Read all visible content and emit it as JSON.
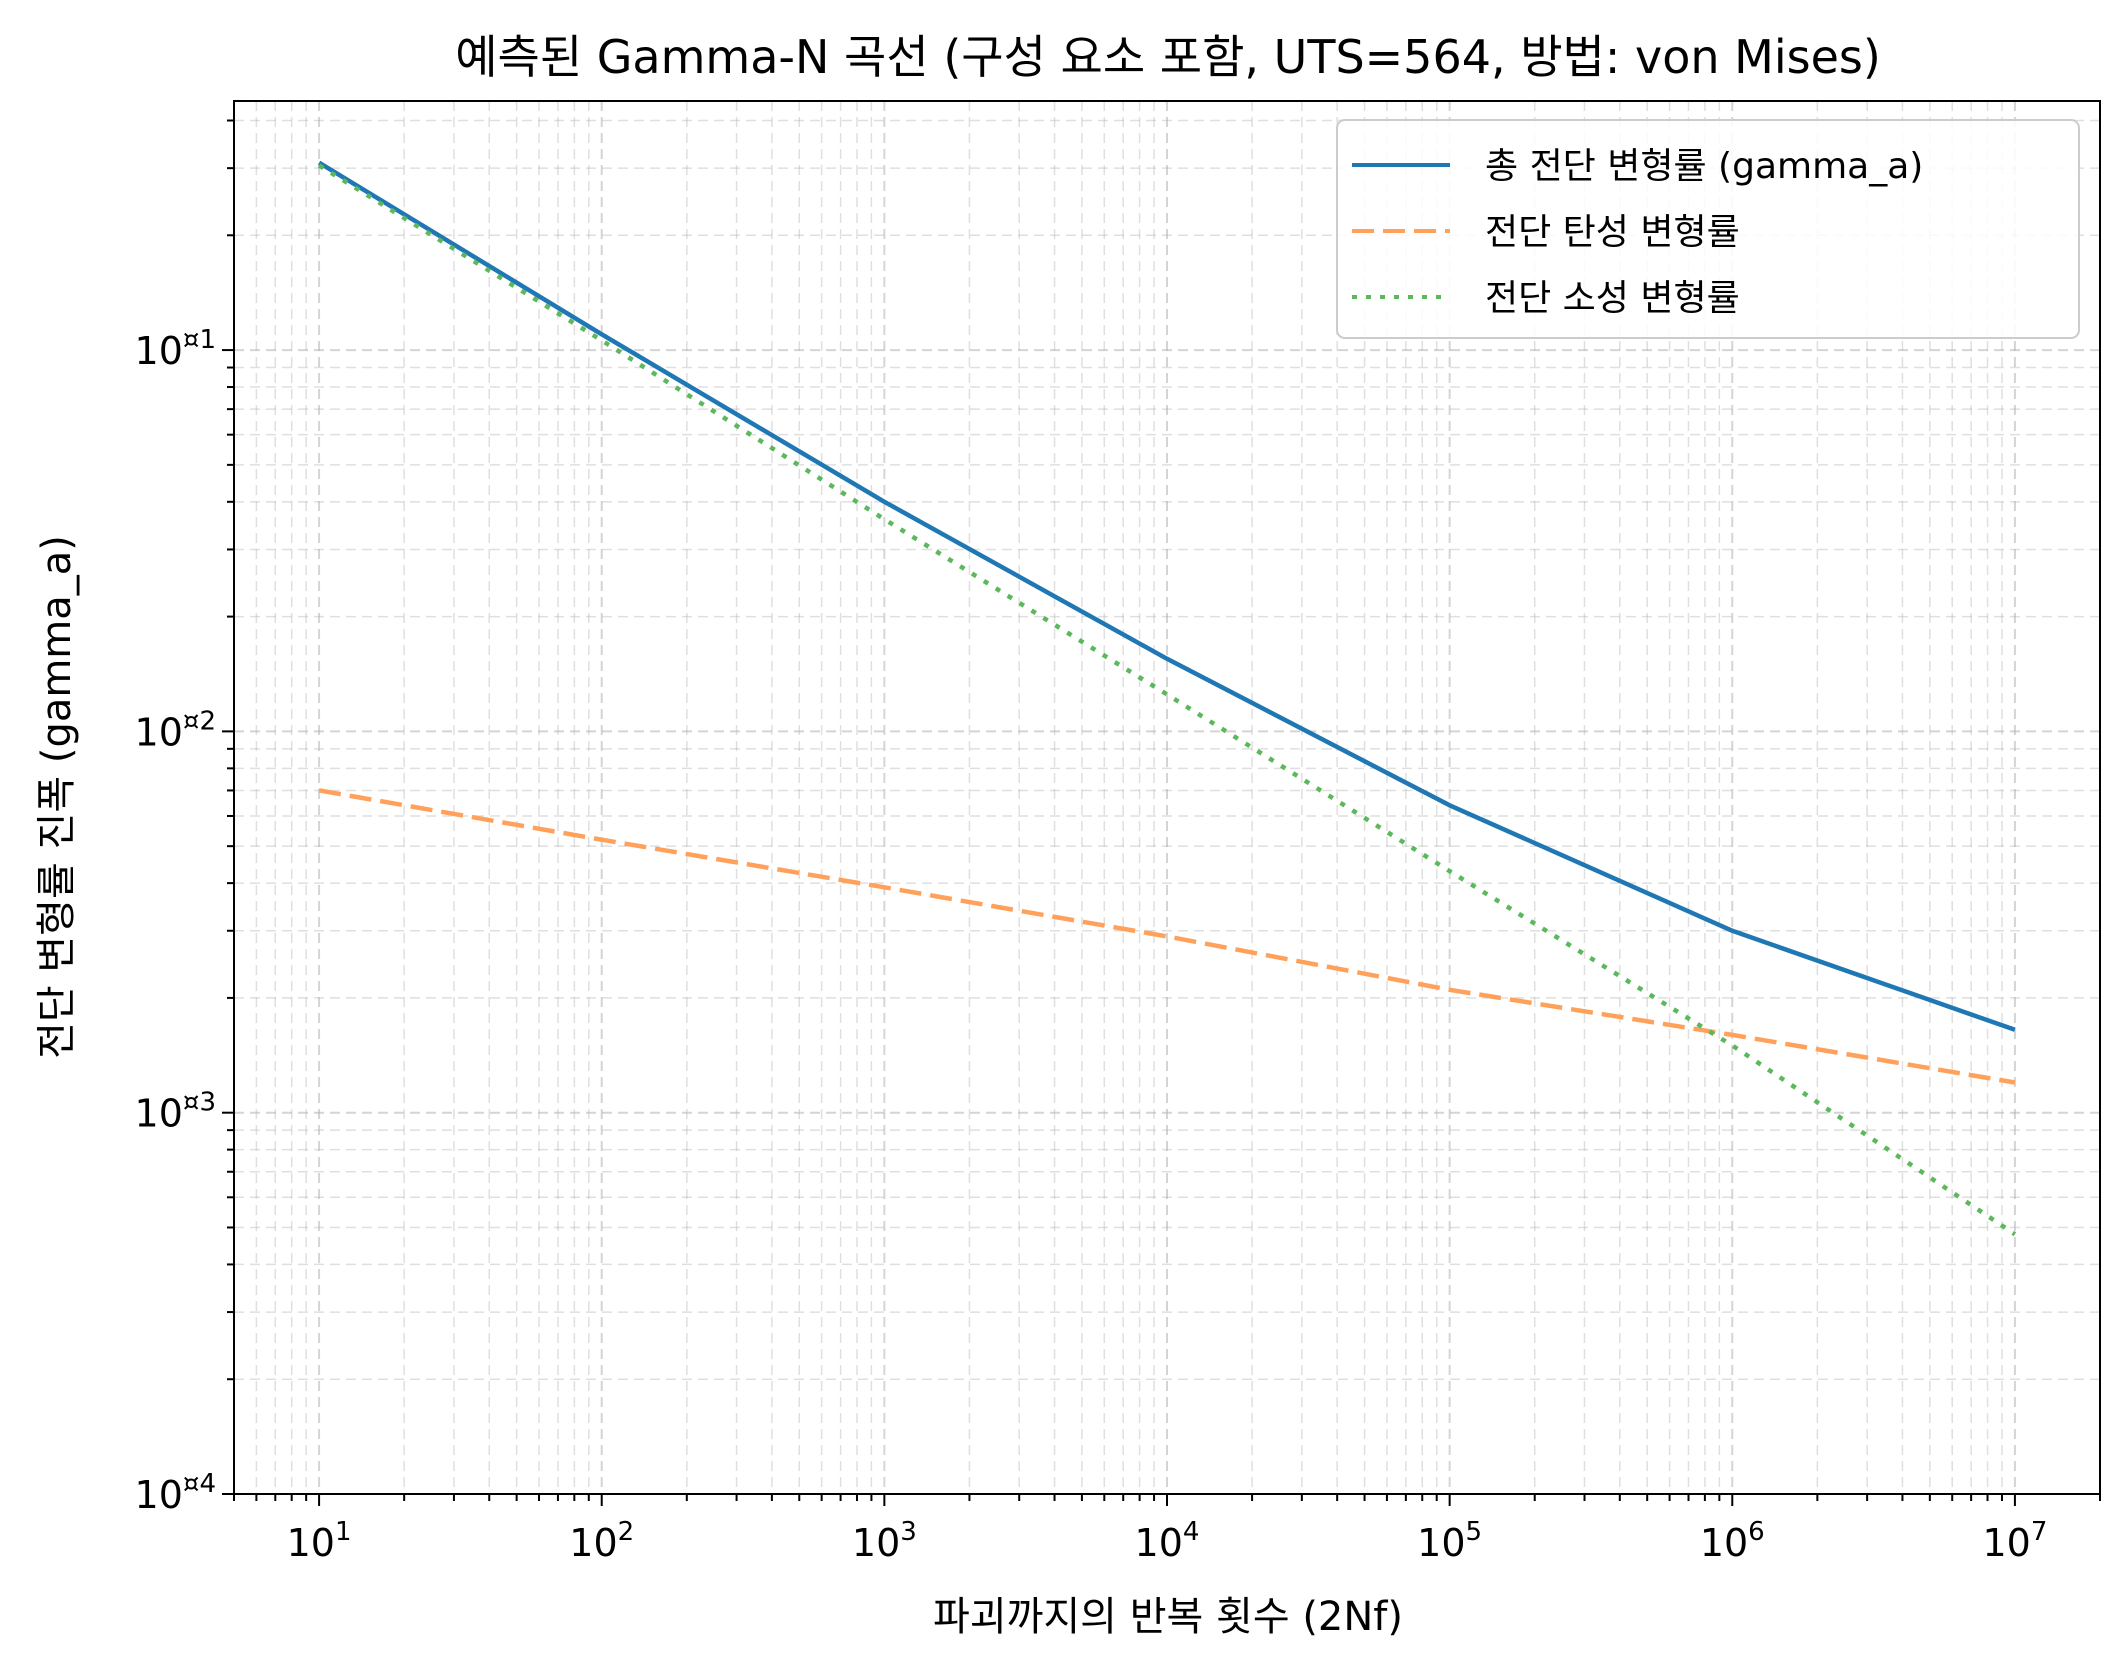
{
  "chart_data": {
    "type": "line",
    "title": "예측된 Gamma-N 곡선 (구성 요소 포함, UTS=564, 방법: von Mises)",
    "xlabel": "파괴까지의 반복 횟수 (2Nf)",
    "ylabel": "전단 변형률 진폭 (gamma_a)",
    "xscale": "log",
    "yscale": "log",
    "xlim": [
      5,
      20000000
    ],
    "ylim": [
      0.0001,
      0.45
    ],
    "x_ticks": [
      10,
      100,
      1000,
      10000,
      100000,
      1000000,
      10000000
    ],
    "x_tick_labels": [
      {
        "base": "10",
        "exp": "1"
      },
      {
        "base": "10",
        "exp": "2"
      },
      {
        "base": "10",
        "exp": "3"
      },
      {
        "base": "10",
        "exp": "4"
      },
      {
        "base": "10",
        "exp": "5"
      },
      {
        "base": "10",
        "exp": "6"
      },
      {
        "base": "10",
        "exp": "7"
      }
    ],
    "y_ticks": [
      0.1,
      0.01,
      0.001,
      0.0001
    ],
    "y_tick_labels": [
      {
        "base": "10",
        "exp": "¤1"
      },
      {
        "base": "10",
        "exp": "¤2"
      },
      {
        "base": "10",
        "exp": "¤3"
      },
      {
        "base": "10",
        "exp": "¤4"
      }
    ],
    "grid": true,
    "legend_position": "top-right",
    "x": [
      10,
      100,
      1000,
      10000,
      100000,
      1000000,
      10000000
    ],
    "series": [
      {
        "name": "총 전단 변형률 (gamma_a)",
        "color": "#1f77b4",
        "style": "solid",
        "values": [
          0.31,
          0.11,
          0.04,
          0.0155,
          0.0064,
          0.003,
          0.00165
        ]
      },
      {
        "name": "전단 탄성 변형률",
        "color": "#ffa15a",
        "style": "dashed",
        "values": [
          0.007,
          0.0052,
          0.0039,
          0.0029,
          0.0021,
          0.0016,
          0.0012
        ]
      },
      {
        "name": "전단 소성 변형률",
        "color": "#5cb85c",
        "style": "dotted",
        "values": [
          0.305,
          0.106,
          0.036,
          0.0125,
          0.0043,
          0.0015,
          0.00048
        ]
      }
    ]
  }
}
